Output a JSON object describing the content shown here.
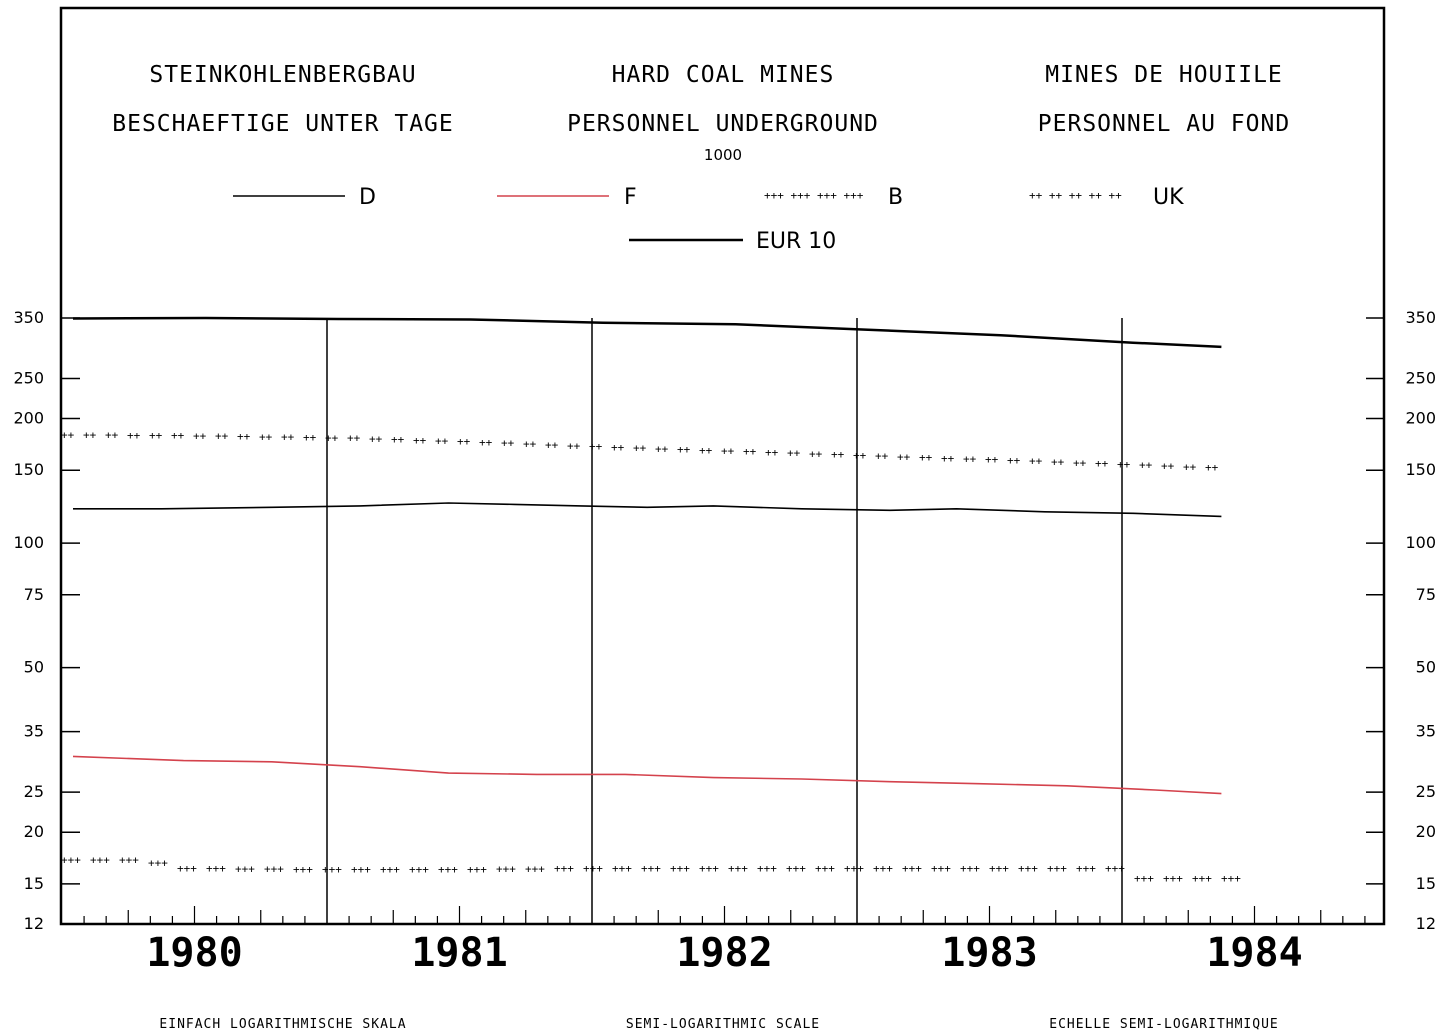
{
  "header": {
    "de": {
      "line1": "STEINKOHLENBERGBAU",
      "line2": "BESCHAEFTIGE UNTER TAGE"
    },
    "en": {
      "line1": "HARD COAL MINES",
      "line2": "PERSONNEL UNDERGROUND"
    },
    "fr": {
      "line1": "MINES DE HOUIILE",
      "line2": "PERSONNEL AU FOND"
    },
    "unit": "1000"
  },
  "footer": {
    "de": "EINFACH LOGARITHMISCHE SKALA",
    "en": "SEMI-LOGARITHMIC SCALE",
    "fr": "ECHELLE SEMI-LOGARITHMIQUE"
  },
  "chart_data": {
    "type": "line",
    "title": "",
    "xlabel": "",
    "ylabel": "",
    "y_scale": "log",
    "ylim": [
      12,
      350
    ],
    "y_ticks": [
      12,
      15,
      20,
      25,
      35,
      50,
      75,
      100,
      150,
      200,
      250,
      350
    ],
    "x_categories": [
      "1980",
      "1981",
      "1982",
      "1983",
      "1984"
    ],
    "x_frequency": "monthly",
    "x_range": [
      "1980-01",
      "1984-12"
    ],
    "grid": false,
    "legend_position": "top",
    "series": [
      {
        "name": "EUR 10",
        "style": "solid",
        "color": "#000000",
        "x": [
          "1980-01",
          "1980-07",
          "1981-01",
          "1981-07",
          "1982-01",
          "1982-07",
          "1983-01",
          "1983-07",
          "1984-01",
          "1984-05"
        ],
        "values": [
          349,
          350,
          348,
          347,
          341,
          338,
          328,
          318,
          305,
          298
        ]
      },
      {
        "name": "UK",
        "style": "dotted-plus",
        "color": "#000000",
        "x": [
          "1980-01",
          "1980-07",
          "1981-01",
          "1981-07",
          "1982-01",
          "1982-07",
          "1983-01",
          "1983-07",
          "1984-01",
          "1984-05"
        ],
        "values": [
          183,
          182,
          180,
          176,
          171,
          167,
          163,
          159,
          155,
          152
        ]
      },
      {
        "name": "D",
        "style": "solid",
        "color": "#000000",
        "x": [
          "1980-01",
          "1980-05",
          "1980-10",
          "1981-02",
          "1981-06",
          "1981-09",
          "1981-12",
          "1982-03",
          "1982-06",
          "1982-10",
          "1983-02",
          "1983-05",
          "1983-09",
          "1984-01",
          "1984-05"
        ],
        "values": [
          121,
          121,
          122,
          123,
          125,
          124,
          123,
          122,
          123,
          121,
          120,
          121,
          119,
          118,
          116
        ]
      },
      {
        "name": "F",
        "style": "solid",
        "color": "#d4424c",
        "x": [
          "1980-01",
          "1980-06",
          "1980-10",
          "1981-02",
          "1981-06",
          "1981-10",
          "1982-02",
          "1982-06",
          "1982-10",
          "1983-02",
          "1983-06",
          "1983-10",
          "1984-02",
          "1984-05"
        ],
        "values": [
          30.5,
          29.8,
          29.6,
          28.8,
          27.8,
          27.6,
          27.6,
          27.1,
          26.9,
          26.5,
          26.2,
          25.9,
          25.3,
          24.8
        ]
      },
      {
        "name": "B",
        "style": "dotted-triple",
        "color": "#000000",
        "x": [
          "1980-01",
          "1980-04",
          "1980-05",
          "1980-12",
          "1981-06",
          "1981-12",
          "1982-06",
          "1982-12",
          "1983-06",
          "1983-12",
          "1984-01",
          "1984-05"
        ],
        "values": [
          17.2,
          17.2,
          16.4,
          16.3,
          16.3,
          16.4,
          16.4,
          16.4,
          16.4,
          16.4,
          15.5,
          15.5
        ]
      }
    ]
  },
  "legend_order": [
    "D",
    "F",
    "B",
    "UK",
    "EUR 10"
  ]
}
